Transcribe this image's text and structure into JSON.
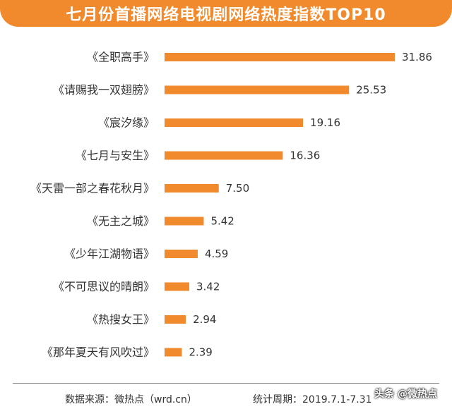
{
  "chart_data": {
    "type": "bar",
    "orientation": "horizontal",
    "title": "七月份首播网络电视剧网络热度指数TOP10",
    "categories": [
      "《全职高手》",
      "《请赐我一双翅膀》",
      "《宸汐缘》",
      "《七月与安生》",
      "《天雷一部之春花秋月》",
      "《无主之城》",
      "《少年江湖物语》",
      "《不可思议的晴朗》",
      "《热搜女王》",
      "《那年夏天有风吹过》"
    ],
    "values": [
      31.86,
      25.53,
      19.16,
      16.36,
      7.5,
      5.42,
      4.59,
      3.42,
      2.94,
      2.39
    ],
    "value_labels": [
      "31.86",
      "25.53",
      "19.16",
      "16.36",
      "7.50",
      "5.42",
      "4.59",
      "3.42",
      "2.94",
      "2.39"
    ],
    "bar_color": "#f08a2c",
    "xlabel": "",
    "ylabel": ""
  },
  "footer": {
    "source": "数据来源：微热点（wrd.cn）",
    "period": "统计周期：2019.7.1-7.31"
  },
  "watermark": {
    "text": "头条 @微热点",
    "badge": "微"
  },
  "colors": {
    "accent": "#f08a2c",
    "text": "#333333"
  }
}
